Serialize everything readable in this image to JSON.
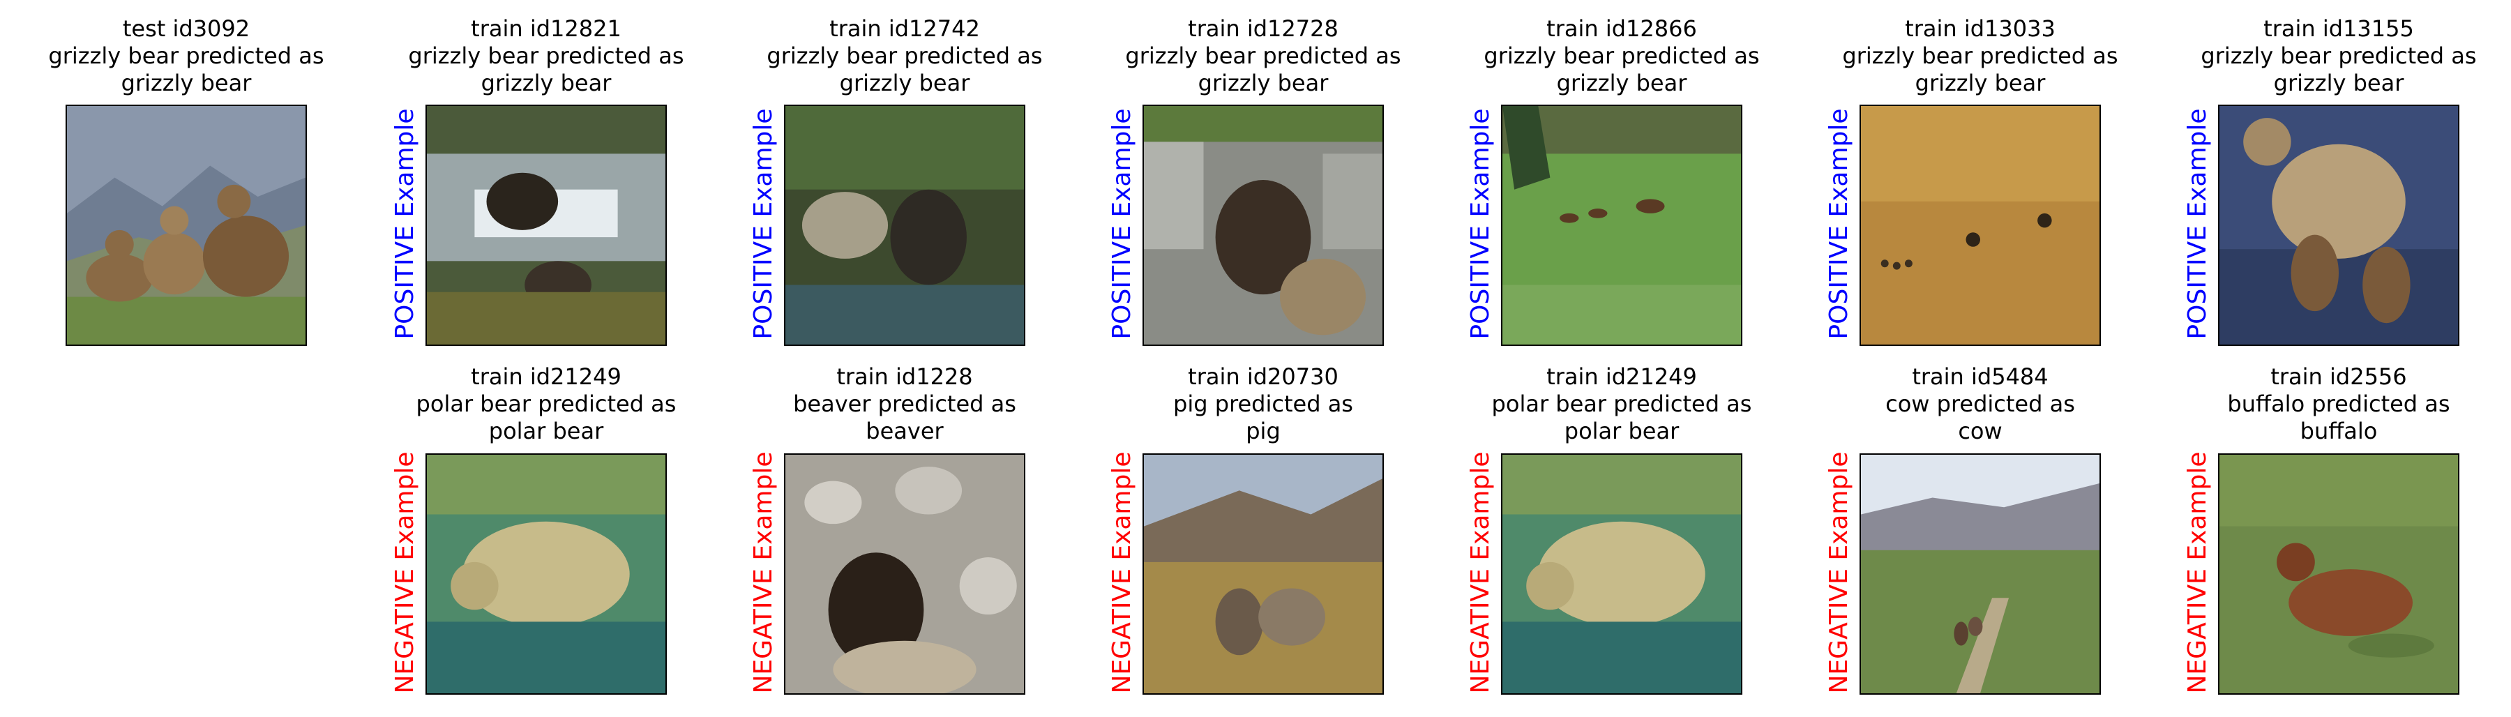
{
  "test": {
    "id": "test id3092",
    "caption1": "grizzly bear predicted as",
    "caption2": "grizzly bear"
  },
  "positive_label": "POSITIVE Example",
  "negative_label": "NEGATIVE Example",
  "positives": [
    {
      "id": "train id12821",
      "caption1": "grizzly bear predicted as",
      "caption2": "grizzly bear"
    },
    {
      "id": "train id12742",
      "caption1": "grizzly bear predicted as",
      "caption2": "grizzly bear"
    },
    {
      "id": "train id12728",
      "caption1": "grizzly bear predicted as",
      "caption2": "grizzly bear"
    },
    {
      "id": "train id12866",
      "caption1": "grizzly bear predicted as",
      "caption2": "grizzly bear"
    },
    {
      "id": "train id13033",
      "caption1": "grizzly bear predicted as",
      "caption2": "grizzly bear"
    },
    {
      "id": "train id13155",
      "caption1": "grizzly bear predicted as",
      "caption2": "grizzly bear"
    }
  ],
  "negatives": [
    {
      "id": "train id21249",
      "caption1": "polar bear predicted as",
      "caption2": "polar bear"
    },
    {
      "id": "train id1228",
      "caption1": "beaver predicted as",
      "caption2": "beaver"
    },
    {
      "id": "train id20730",
      "caption1": "pig predicted as",
      "caption2": "pig"
    },
    {
      "id": "train id21249",
      "caption1": "polar bear predicted as",
      "caption2": "polar bear"
    },
    {
      "id": "train id5484",
      "caption1": "cow predicted as",
      "caption2": "cow"
    },
    {
      "id": "train id2556",
      "caption1": "buffalo predicted as",
      "caption2": "buffalo"
    }
  ]
}
